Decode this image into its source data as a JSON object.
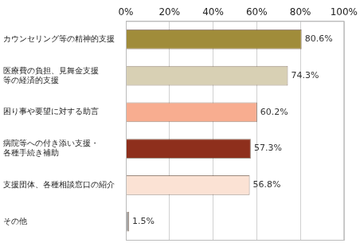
{
  "chart_data": {
    "type": "bar",
    "orientation": "horizontal",
    "categories": [
      "カウンセリング等の精神的支援",
      "医療費の負担、見舞金支援等の経済的支援",
      "困り事や要望に対する助言",
      "病院等への付き添い支援・各種手続き補助",
      "支援団体、各種相談窓口の紹介",
      "その他"
    ],
    "values": [
      80.6,
      74.3,
      60.2,
      57.3,
      56.8,
      1.5
    ],
    "value_labels": [
      "80.6%",
      "74.3%",
      "60.2%",
      "57.3%",
      "56.8%",
      "1.5%"
    ],
    "colors": [
      "#a08c3a",
      "#d8d0b4",
      "#f8ad90",
      "#8e2f1c",
      "#fbe2d4",
      "#a6a6a6"
    ],
    "xlim": [
      0,
      100
    ],
    "xticks": [
      {
        "value": 0,
        "label": "0%"
      },
      {
        "value": 20,
        "label": "20%"
      },
      {
        "value": 40,
        "label": "40%"
      },
      {
        "value": 60,
        "label": "60%"
      },
      {
        "value": 80,
        "label": "80%"
      },
      {
        "value": 100,
        "label": "100%"
      }
    ],
    "grid": true,
    "data_labels": true
  }
}
